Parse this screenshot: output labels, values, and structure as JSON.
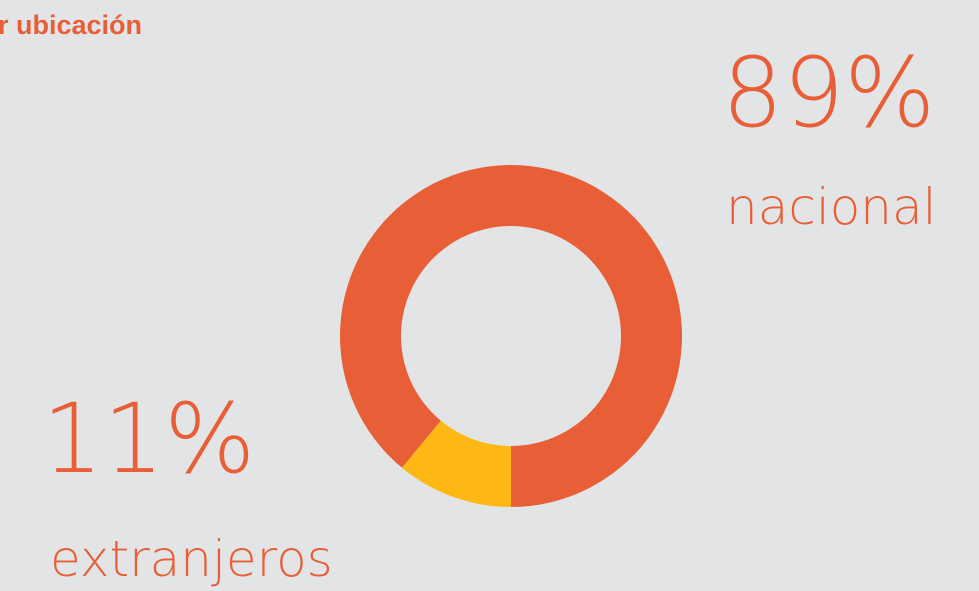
{
  "chart_data": {
    "type": "donut",
    "title": "r ubicación",
    "categories": [
      "nacional",
      "extranjeros"
    ],
    "values": [
      89,
      11
    ],
    "value_labels": [
      "89%",
      "11%"
    ],
    "colors": [
      "#e85f37",
      "#fdb813"
    ]
  }
}
